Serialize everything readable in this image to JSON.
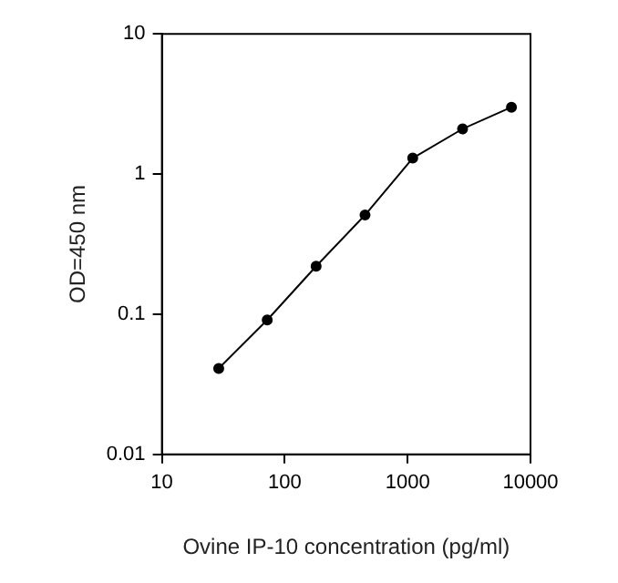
{
  "chart_data": {
    "type": "line",
    "xlabel": "Ovine IP-10 concentration (pg/ml)",
    "ylabel": "OD=450 nm",
    "x": [
      29,
      72,
      180,
      450,
      1100,
      2800,
      7000
    ],
    "series": [
      {
        "color": "#000000",
        "values": [
          0.041,
          0.091,
          0.22,
          0.51,
          1.3,
          2.1,
          3.0
        ]
      }
    ],
    "log": "xy",
    "xlim": [
      10,
      10000
    ],
    "ylim": [
      0.01,
      10
    ],
    "xticks": [
      10,
      100,
      1000,
      10000
    ],
    "yticks": [
      0.01,
      0.1,
      1,
      10
    ],
    "marker": "circle",
    "line_style": "solid",
    "grid": false,
    "legend": false
  }
}
